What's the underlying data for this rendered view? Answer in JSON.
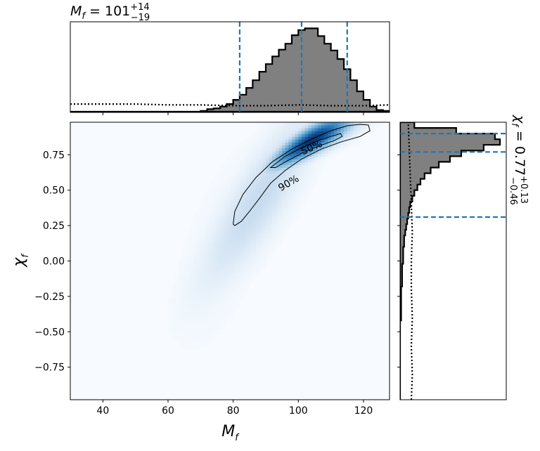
{
  "chart_data": {
    "type": "heatmap",
    "title_top": {
      "symbol": "M",
      "sub": "f",
      "eq": " = 101",
      "plus": "+14",
      "minus": "−19"
    },
    "title_right": {
      "symbol": "χ",
      "sub": "f",
      "eq": " = 0.77",
      "plus": "+0.13",
      "minus": "−0.46"
    },
    "xlabel": {
      "symbol": "M",
      "sub": "f"
    },
    "ylabel": {
      "symbol": "χ",
      "sub": "f"
    },
    "xlim": [
      30,
      128
    ],
    "ylim": [
      -0.98,
      0.98
    ],
    "xticks": [
      40,
      60,
      80,
      100,
      120
    ],
    "xtick_labels": [
      "40",
      "60",
      "80",
      "100",
      "120"
    ],
    "yticks": [
      0.75,
      0.5,
      0.25,
      0.0,
      -0.25,
      -0.5,
      -0.75
    ],
    "ytick_labels": [
      "0.75",
      "0.50",
      "0.25",
      "0.00",
      "−0.25",
      "−0.50",
      "−0.75"
    ],
    "contour_labels": [
      "50%",
      "90%"
    ],
    "colormap": {
      "low": "#f7fbff",
      "high": "#08306b"
    },
    "accent_color": "#1f77b4",
    "hist_fill": "#808080",
    "mf_quantile_lines": [
      82,
      101,
      115
    ],
    "chi_quantile_lines": [
      0.31,
      0.77,
      0.9
    ],
    "mf_hist": {
      "bin_edges": [
        30,
        32,
        34,
        36,
        38,
        40,
        42,
        44,
        46,
        48,
        50,
        52,
        54,
        56,
        58,
        60,
        62,
        64,
        66,
        68,
        70,
        72,
        74,
        76,
        78,
        80,
        82,
        84,
        86,
        88,
        90,
        92,
        94,
        96,
        98,
        100,
        102,
        104,
        106,
        108,
        110,
        112,
        114,
        116,
        118,
        120,
        122,
        124,
        126,
        128
      ],
      "counts": [
        0,
        0,
        0,
        0,
        0,
        0,
        0,
        0,
        0,
        0,
        0,
        0,
        0,
        0,
        0,
        0,
        0,
        0,
        0,
        0,
        0.01,
        0.03,
        0.04,
        0.06,
        0.09,
        0.14,
        0.2,
        0.28,
        0.37,
        0.47,
        0.56,
        0.65,
        0.73,
        0.8,
        0.9,
        0.96,
        0.98,
        0.98,
        0.89,
        0.8,
        0.72,
        0.62,
        0.5,
        0.37,
        0.24,
        0.14,
        0.06,
        0.02,
        0.01
      ]
    },
    "mf_prior": {
      "x": [
        30,
        40,
        50,
        60,
        70,
        80,
        90,
        100,
        110,
        120,
        128
      ],
      "y": [
        0.09,
        0.09,
        0.09,
        0.08,
        0.08,
        0.07,
        0.07,
        0.08,
        0.07,
        0.07,
        0.08
      ]
    },
    "chi_hist": {
      "bin_edges": [
        -0.98,
        -0.94,
        -0.9,
        -0.86,
        -0.82,
        -0.78,
        -0.74,
        -0.7,
        -0.66,
        -0.62,
        -0.58,
        -0.54,
        -0.5,
        -0.46,
        -0.42,
        -0.38,
        -0.34,
        -0.3,
        -0.26,
        -0.22,
        -0.18,
        -0.14,
        -0.1,
        -0.06,
        -0.02,
        0.02,
        0.06,
        0.1,
        0.14,
        0.18,
        0.22,
        0.26,
        0.3,
        0.34,
        0.38,
        0.42,
        0.46,
        0.5,
        0.54,
        0.58,
        0.62,
        0.66,
        0.7,
        0.74,
        0.78,
        0.82,
        0.86,
        0.9,
        0.94,
        0.98
      ],
      "counts": [
        0,
        0,
        0,
        0,
        0,
        0,
        0,
        0,
        0,
        0,
        0,
        0,
        0,
        0,
        0.01,
        0.01,
        0.01,
        0.01,
        0.01,
        0.01,
        0.02,
        0.02,
        0.02,
        0.02,
        0.03,
        0.03,
        0.03,
        0.04,
        0.04,
        0.05,
        0.06,
        0.07,
        0.08,
        0.09,
        0.1,
        0.12,
        0.14,
        0.17,
        0.2,
        0.24,
        0.3,
        0.38,
        0.49,
        0.6,
        0.82,
        0.98,
        0.93,
        0.55,
        0.14
      ]
    },
    "chi_prior": {
      "y": [
        -0.98,
        -0.8,
        -0.6,
        -0.4,
        -0.2,
        0.0,
        0.2,
        0.4,
        0.6,
        0.8,
        0.98
      ],
      "x": [
        0.11,
        0.12,
        0.11,
        0.12,
        0.11,
        0.11,
        0.12,
        0.11,
        0.1,
        0.09,
        0.08
      ]
    },
    "contour_50": {
      "x": [
        91.5,
        96,
        101,
        106,
        110,
        113,
        113.5,
        111,
        106,
        101,
        96,
        93,
        91.5
      ],
      "y": [
        0.66,
        0.74,
        0.8,
        0.85,
        0.88,
        0.9,
        0.88,
        0.85,
        0.81,
        0.76,
        0.7,
        0.66,
        0.66
      ]
    },
    "contour_90": {
      "x": [
        80,
        80.5,
        83,
        87,
        92,
        98,
        104,
        110,
        115,
        119,
        121.5,
        122,
        119,
        113,
        107,
        101,
        96,
        91.5,
        88,
        85,
        82.5,
        80.5,
        80
      ],
      "y": [
        0.26,
        0.35,
        0.47,
        0.59,
        0.7,
        0.79,
        0.86,
        0.92,
        0.955,
        0.965,
        0.96,
        0.92,
        0.88,
        0.84,
        0.79,
        0.72,
        0.64,
        0.55,
        0.44,
        0.35,
        0.28,
        0.25,
        0.26
      ]
    }
  }
}
